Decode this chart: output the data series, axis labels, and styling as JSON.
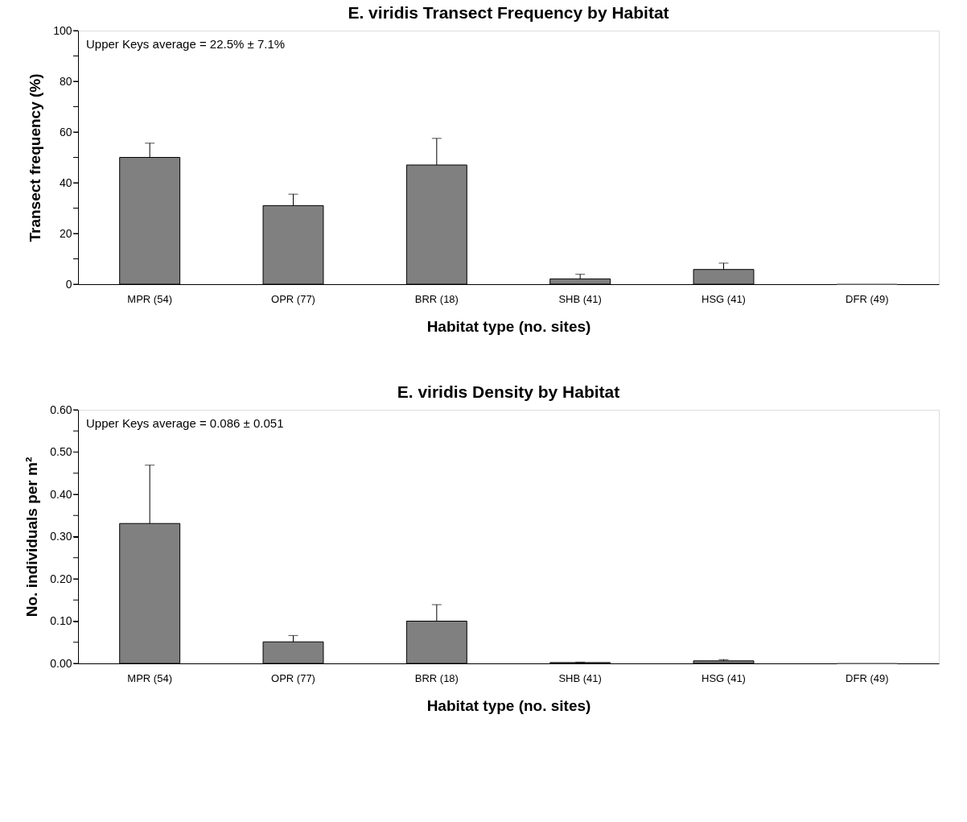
{
  "chart_data": [
    {
      "type": "bar",
      "title": "E. viridis Transect Frequency by Habitat",
      "xlabel": "Habitat type (no. sites)",
      "ylabel": "Transect frequency (%)",
      "categories": [
        "MPR (54)",
        "OPR (77)",
        "BRR (18)",
        "SHB (41)",
        "HSG (41)",
        "DFR (49)"
      ],
      "values": [
        50,
        31,
        47,
        2.1,
        5.8,
        0
      ],
      "errors": [
        5.6,
        4.5,
        10.5,
        1.8,
        2.5,
        null
      ],
      "color": "#808080",
      "ylim": [
        0,
        100
      ],
      "yticks": [
        0,
        {
          "value": 10,
          "label": null
        },
        20,
        {
          "value": 30,
          "label": null
        },
        40,
        {
          "value": 50,
          "label": null
        },
        60,
        {
          "value": 70,
          "label": null
        },
        80,
        {
          "value": 90,
          "label": null
        },
        100
      ],
      "annotations": [
        "Upper Keys average = 22.5% ± 7.1%"
      ]
    },
    {
      "type": "bar",
      "title": "E. viridis Density by Habitat",
      "xlabel": "Habitat type (no. sites)",
      "ylabel": "No. individuals per m²",
      "categories": [
        "MPR (54)",
        "OPR (77)",
        "BRR (18)",
        "SHB (41)",
        "HSG (41)",
        "DFR (49)"
      ],
      "values": [
        0.331,
        0.051,
        0.1,
        0.002,
        0.006,
        0
      ],
      "errors": [
        0.138,
        0.015,
        0.039,
        0.001,
        0.003,
        null
      ],
      "color": "#808080",
      "ylim": [
        0,
        0.6
      ],
      "yticks": [
        {
          "value": 0,
          "label": "0.00"
        },
        {
          "value": 0.05,
          "label": null
        },
        {
          "value": 0.1,
          "label": "0.10"
        },
        {
          "value": 0.15,
          "label": null
        },
        {
          "value": 0.2,
          "label": "0.20"
        },
        {
          "value": 0.25,
          "label": null
        },
        {
          "value": 0.3,
          "label": "0.30"
        },
        {
          "value": 0.35,
          "label": null
        },
        {
          "value": 0.4,
          "label": "0.40"
        },
        {
          "value": 0.45,
          "label": null
        },
        {
          "value": 0.5,
          "label": "0.50"
        },
        {
          "value": 0.55,
          "label": null
        },
        {
          "value": 0.6,
          "label": "0.60"
        }
      ],
      "annotations": [
        "Upper Keys average = 0.086 ± 0.051"
      ]
    }
  ]
}
